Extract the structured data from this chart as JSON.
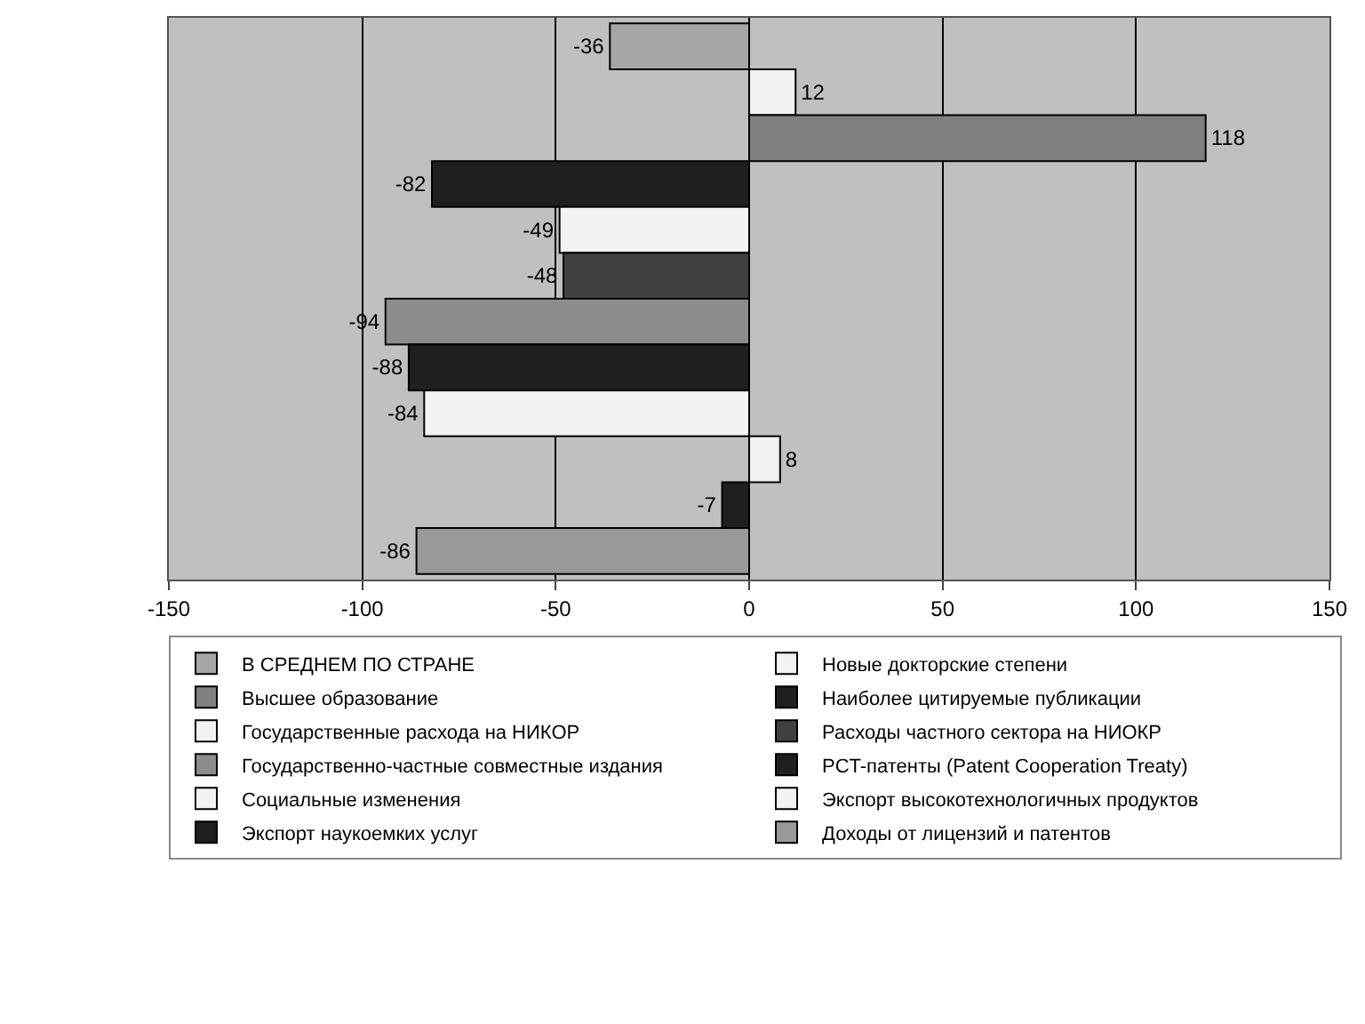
{
  "chart_data": {
    "type": "bar",
    "orientation": "horizontal",
    "categories": [
      null
    ],
    "series": [
      {
        "name": "В СРЕДНЕМ ПО СТРАНЕ",
        "color": "#a6a6a6",
        "values": [
          -36
        ]
      },
      {
        "name": "Новые докторские степени",
        "color": "#f2f2f2",
        "values": [
          12
        ]
      },
      {
        "name": "Высшее образование",
        "color": "#7f7f7f",
        "values": [
          118
        ]
      },
      {
        "name": "Наиболее цитируемые публикации",
        "color": "#1f1f1f",
        "values": [
          -82
        ]
      },
      {
        "name": "Государственные расхода на НИКОР",
        "color": "#f2f2f2",
        "values": [
          -49
        ]
      },
      {
        "name": "Расходы частного сектора на НИОКР",
        "color": "#404040",
        "values": [
          -48
        ]
      },
      {
        "name": "Государственно-частные совместные издания",
        "color": "#8c8c8c",
        "values": [
          -94
        ]
      },
      {
        "name": "PCT-патенты (Patent Cooperation Treaty)",
        "color": "#1f1f1f",
        "values": [
          -88
        ]
      },
      {
        "name": "Социальные изменения",
        "color": "#f2f2f2",
        "values": [
          -84
        ]
      },
      {
        "name": "Экспорт высокотехнологичных продуктов",
        "color": "#f2f2f2",
        "values": [
          8
        ]
      },
      {
        "name": "Экспорт наукоемких услуг",
        "color": "#1f1f1f",
        "values": [
          -7
        ]
      },
      {
        "name": "Доходы от лицензий и патентов",
        "color": "#999999",
        "values": [
          -86
        ]
      }
    ],
    "xlim": [
      -150,
      150
    ],
    "xticks": [
      -150,
      -100,
      -50,
      0,
      50,
      100,
      150
    ],
    "grid": "x",
    "legend": "bottom",
    "data_labels": true
  }
}
